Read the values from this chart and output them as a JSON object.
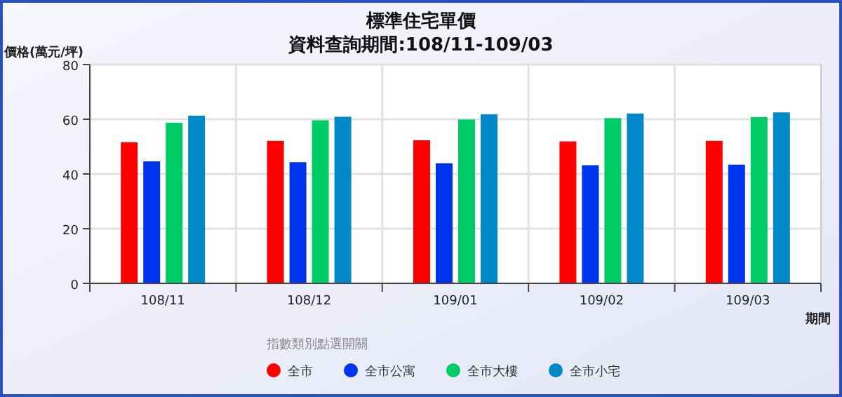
{
  "chart_data": {
    "type": "bar",
    "title": "標準住宅單價",
    "subtitle": "資料查詢期間:108/11-109/03",
    "xlabel": "期間",
    "ylabel": "價格(萬元/坪)",
    "legend_title": "指數類別點選開關",
    "categories": [
      "108/11",
      "108/12",
      "109/01",
      "109/02",
      "109/03"
    ],
    "series": [
      {
        "name": "全市",
        "color": "#ff0000",
        "values": [
          51.6,
          52.1,
          52.3,
          51.9,
          52.1
        ]
      },
      {
        "name": "全市公寓",
        "color": "#0033ee",
        "values": [
          44.6,
          44.3,
          43.9,
          43.2,
          43.4
        ]
      },
      {
        "name": "全市大樓",
        "color": "#00cc66",
        "values": [
          58.7,
          59.6,
          59.9,
          60.4,
          60.8
        ]
      },
      {
        "name": "全市小宅",
        "color": "#0088c8",
        "values": [
          61.3,
          60.9,
          61.8,
          62.1,
          62.5
        ]
      }
    ],
    "ylim": [
      0,
      80
    ],
    "yticks": [
      0,
      20,
      40,
      60,
      80
    ],
    "grid": true,
    "legend": "bottom left"
  }
}
